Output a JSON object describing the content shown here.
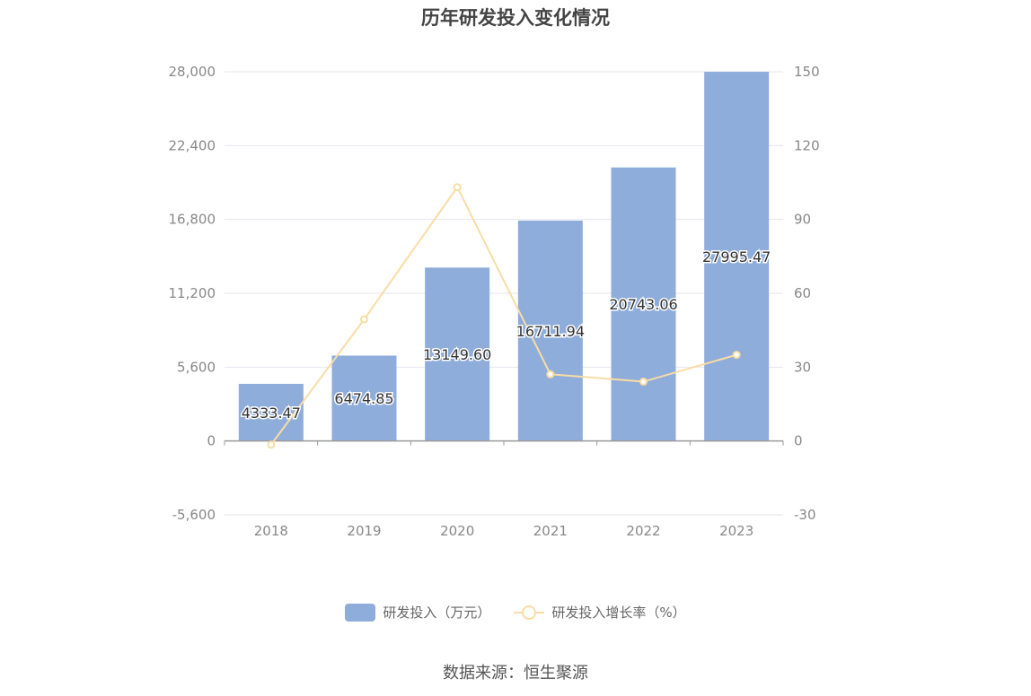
{
  "title": "历年研发投入变化情况",
  "source": "数据来源：恒生聚源",
  "colors": {
    "bar": "#8EADDB",
    "line": "#F9DCA4",
    "grid": "#E3E6EE",
    "axis": "#9A9A9A"
  },
  "legend": {
    "bar_label": "研发投入（万元）",
    "line_label": "研发投入增长率（%）"
  },
  "chart_data": {
    "type": "bar",
    "categories": [
      "2018",
      "2019",
      "2020",
      "2021",
      "2022",
      "2023"
    ],
    "series": [
      {
        "name": "研发投入（万元）",
        "type": "bar",
        "axis": "left",
        "values": [
          4333.47,
          6474.85,
          13149.6,
          16711.94,
          20743.06,
          27995.47
        ],
        "labels": [
          "4333.47",
          "6474.85",
          "13149.60",
          "16711.94",
          "20743.06",
          "27995.47"
        ]
      },
      {
        "name": "研发投入增长率（%）",
        "type": "line",
        "axis": "right",
        "values": [
          -1.5,
          49.4,
          103.1,
          27.1,
          24.1,
          35.0
        ]
      }
    ],
    "y_left": {
      "min": -5600,
      "max": 28000,
      "ticks": [
        -5600,
        0,
        5600,
        11200,
        16800,
        22400,
        28000
      ],
      "tick_labels": [
        "-5,600",
        "0",
        "5,600",
        "11,200",
        "16,800",
        "22,400",
        "28,000"
      ]
    },
    "y_right": {
      "min": -30,
      "max": 150,
      "ticks": [
        -30,
        0,
        30,
        60,
        90,
        120,
        150
      ],
      "tick_labels": [
        "-30",
        "0",
        "30",
        "60",
        "90",
        "120",
        "150"
      ]
    },
    "grid": true,
    "legend_position": "bottom"
  }
}
